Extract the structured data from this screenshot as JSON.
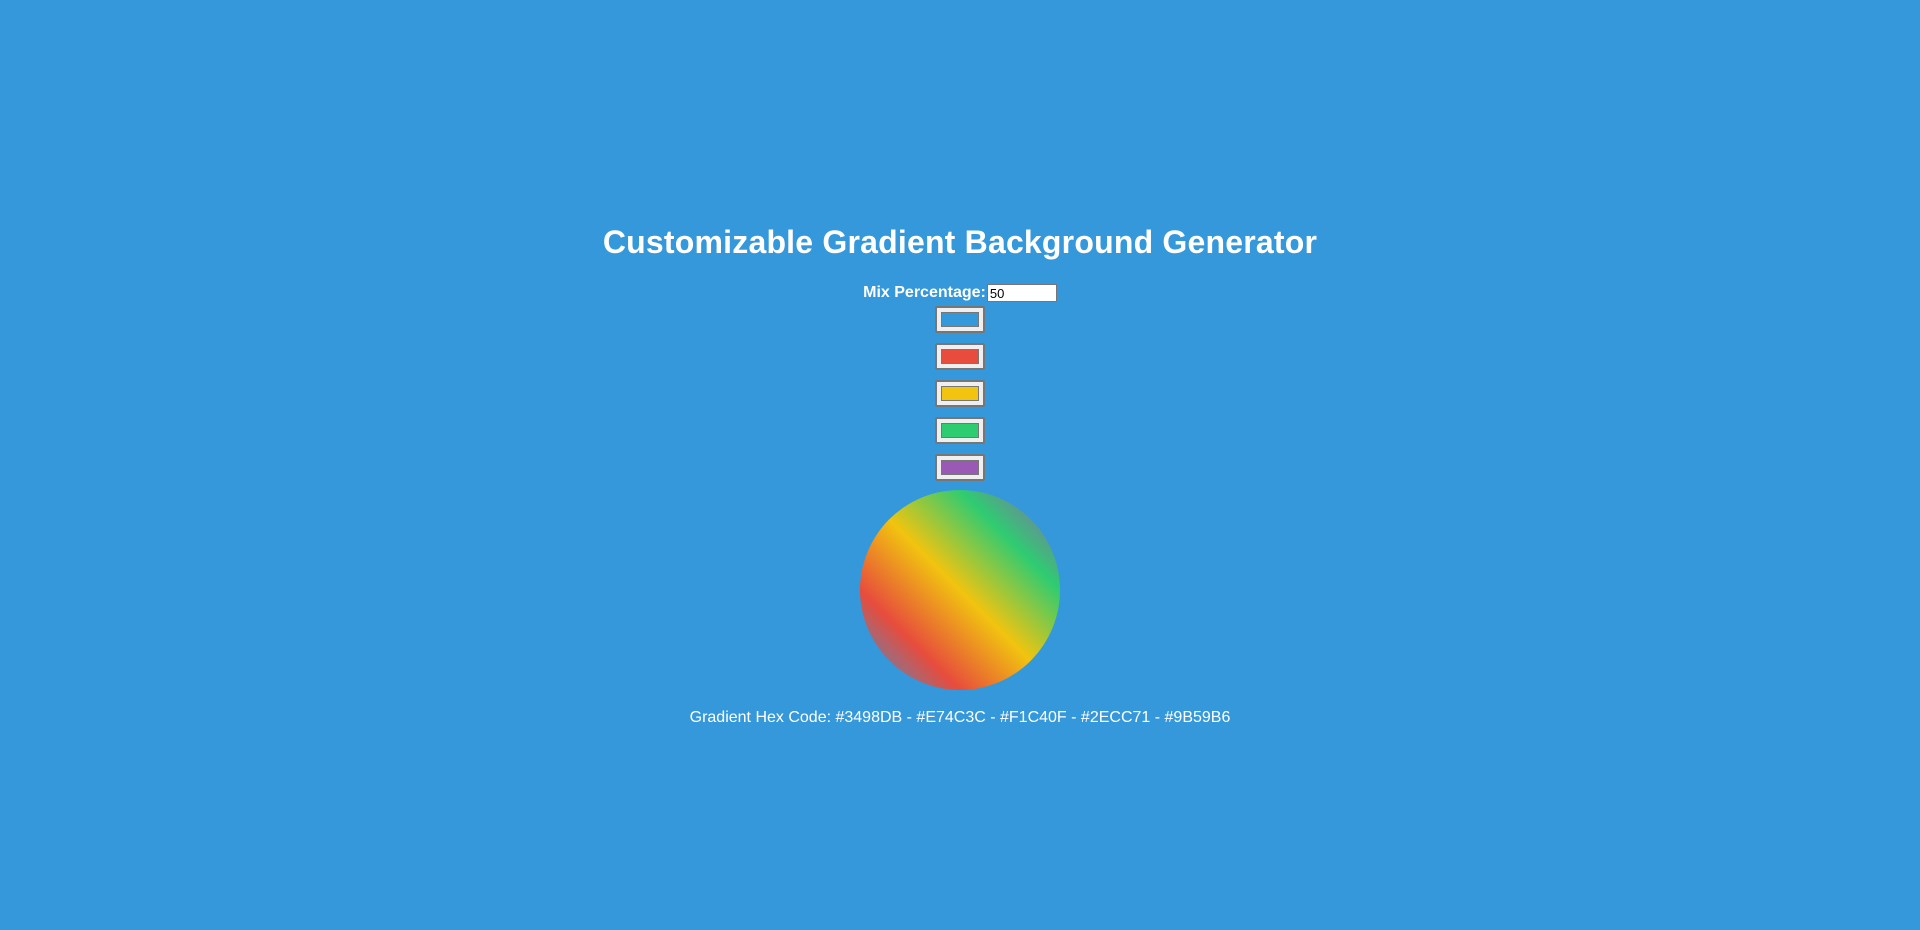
{
  "page": {
    "title": "Customizable Gradient Background Generator",
    "background_color": "#3498DB"
  },
  "mix": {
    "label": "Mix Percentage:",
    "value": "50"
  },
  "colors": [
    "#3498DB",
    "#E74C3C",
    "#F1C40F",
    "#2ECC71",
    "#9B59B6"
  ],
  "hex_output": {
    "text": "Gradient Hex Code: #3498DB - #E74C3C - #F1C40F - #2ECC71 - #9B59B6"
  }
}
